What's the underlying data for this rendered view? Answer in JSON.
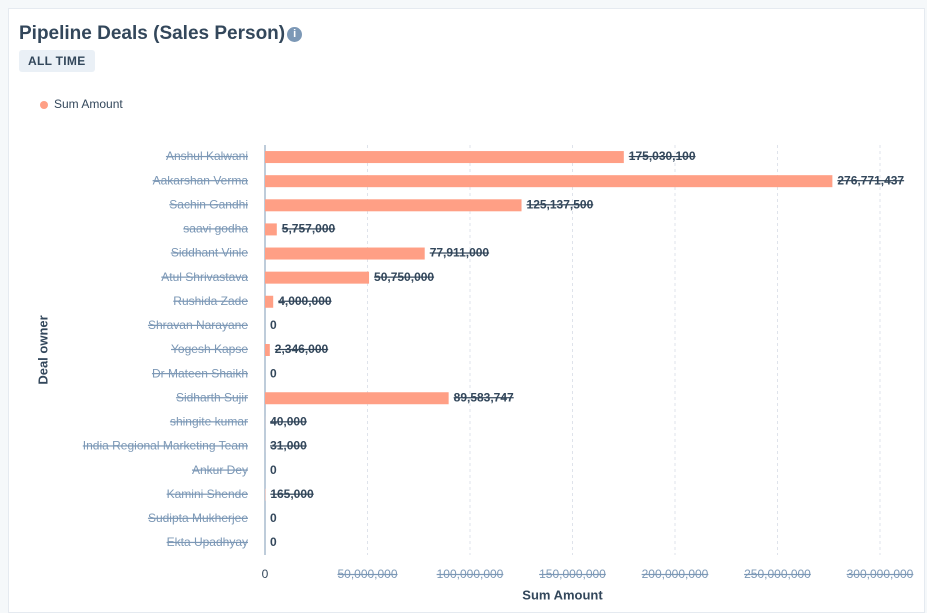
{
  "header": {
    "title": "Pipeline Deals (Sales Person)",
    "badge": "ALL TIME"
  },
  "chart_data": {
    "type": "bar",
    "orientation": "horizontal",
    "x_label": "Sum Amount",
    "y_label": "Deal owner",
    "categories": [
      "Anshul Kalwani",
      "Aakarshan Verma",
      "Sachin Gandhi",
      "saavi godha",
      "Siddhant Vinle",
      "Atul Shrivastava",
      "Rushida Zade",
      "Shravan Narayane",
      "Yogesh Kapse",
      "Dr Mateen Shaikh",
      "Sidharth Sujir",
      "shingite kumar",
      "India Regional Marketing Team",
      "Ankur Dey",
      "Kamini Shende",
      "Sudipta Mukherjee",
      "Ekta Upadhyay"
    ],
    "series": [
      {
        "name": "Sum Amount",
        "color": "#ff9f85",
        "values": [
          175030100,
          276771437,
          125137500,
          5757000,
          77911000,
          50750000,
          4000000,
          0,
          2346000,
          0,
          89583747,
          40000,
          31000,
          0,
          165000,
          0,
          0
        ],
        "value_labels": [
          "175,030,100",
          "276,771,437",
          "125,137,500",
          "5,757,000",
          "77,911,000",
          "50,750,000",
          "4,000,000",
          "0",
          "2,346,000",
          "0",
          "89,583,747",
          "40,000",
          "31,000",
          "0",
          "165,000",
          "0",
          "0"
        ]
      }
    ],
    "xlim": [
      0,
      300000000
    ],
    "xticks": [
      0,
      {
        "value": 50000000,
        "label": "50,000,000"
      },
      {
        "value": 100000000,
        "label": "100,000,000"
      },
      {
        "value": 150000000,
        "label": "150,000,000"
      },
      {
        "value": 200000000,
        "label": "200,000,000"
      },
      {
        "value": 250000000,
        "label": "250,000,000"
      },
      {
        "value": 300000000,
        "label": "300,000,000"
      }
    ],
    "grid": true,
    "legend": "top-left"
  }
}
